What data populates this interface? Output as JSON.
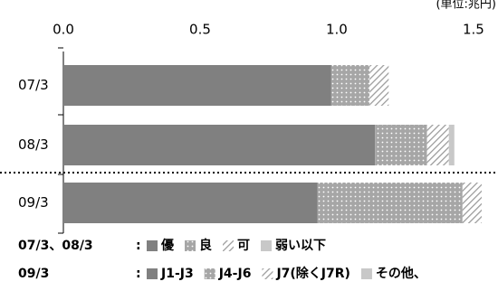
{
  "chart_data": {
    "type": "stacked-bar-horizontal",
    "unit_label": "(単位:兆円)",
    "categories": [
      "07/3",
      "08/3",
      "09/3"
    ],
    "xlim": [
      0,
      1.55
    ],
    "xticks": [
      {
        "value": 0,
        "label": "0.0"
      },
      0.5,
      {
        "value": 1,
        "label": "1.0"
      },
      1.5
    ],
    "legend_separator": ":",
    "groups": [
      {
        "label": "07/3、08/3",
        "series": [
          {
            "name": "優",
            "color": "#808080",
            "pattern": "solid",
            "values": [
              0.98,
              1.14,
              null
            ]
          },
          {
            "name": "良",
            "color": "#a6a6a6",
            "pattern": "dots",
            "values": [
              0.14,
              0.19,
              null
            ]
          },
          {
            "name": "可",
            "color": "#9a9a9a",
            "pattern": "hatch",
            "values": [
              0.07,
              0.08,
              null
            ]
          },
          {
            "name": "弱い以下",
            "color": "#c8c8c8",
            "pattern": "solid",
            "values": [
              0,
              0.02,
              null
            ]
          }
        ]
      },
      {
        "label": "09/3",
        "series": [
          {
            "name": "J1-J3",
            "color": "#808080",
            "pattern": "solid",
            "values": [
              null,
              null,
              0.93
            ]
          },
          {
            "name": "J4-J6",
            "color": "#a6a6a6",
            "pattern": "dots",
            "values": [
              null,
              null,
              0.53
            ]
          },
          {
            "name": "J7(除くJ7R)",
            "color": "#9a9a9a",
            "pattern": "hatch",
            "values": [
              null,
              null,
              0.07
            ]
          },
          {
            "name": "その他、",
            "color": "#c8c8c8",
            "pattern": "solid",
            "values": [
              null,
              null,
              0
            ]
          }
        ]
      }
    ]
  }
}
